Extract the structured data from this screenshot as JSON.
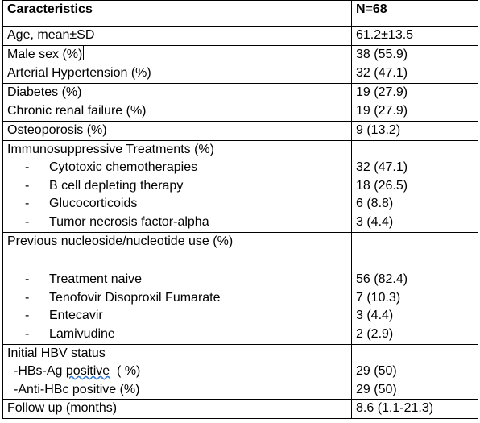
{
  "header": {
    "col1": "Caracteristics",
    "col2": "N=68"
  },
  "simple_rows": [
    {
      "label": "Age, mean±SD",
      "value": "61.2±13.5"
    },
    {
      "label": "Male sex (%)",
      "value": "38 (55.9)"
    },
    {
      "label": "Arterial Hypertension (%)",
      "value": "32 (47.1)"
    },
    {
      "label": "Diabetes (%)",
      "value": "19 (27.9)"
    },
    {
      "label": "Chronic renal failure (%)",
      "value": "19 (27.9)"
    },
    {
      "label": "Osteoporosis (%)",
      "value": "9 (13.2)"
    }
  ],
  "immuno": {
    "title": "Immunosuppressive Treatments (%)",
    "items": [
      {
        "dash": "-",
        "label": "Cytotoxic chemotherapies",
        "value": "32 (47.1)"
      },
      {
        "dash": "-",
        "label": "B cell depleting therapy",
        "value": "18 (26.5)"
      },
      {
        "dash": "-",
        "label": "Glucocorticoids",
        "value": "6 (8.8)"
      },
      {
        "dash": "-",
        "label": "Tumor necrosis factor-alpha",
        "value": "3 (4.4)"
      }
    ]
  },
  "nucleoside": {
    "title": "Previous nucleoside/nucleotide use (%)",
    "items": [
      {
        "dash": "-",
        "label": "Treatment naive",
        "value": "56 (82.4)"
      },
      {
        "dash": "-",
        "label": "Tenofovir Disoproxil Fumarate",
        "value": "7 (10.3)"
      },
      {
        "dash": "-",
        "label": "Entecavir",
        "value": "3 (4.4)"
      },
      {
        "dash": "-",
        "label": "Lamivudine",
        "value": "2 (2.9)"
      }
    ]
  },
  "hbv": {
    "title": "Initial HBV status",
    "items": [
      {
        "label_pre": "-HBs-Ag ",
        "label_wavy": "positive",
        "label_post": "  ( %)",
        "value": "29 (50)"
      },
      {
        "label": "-Anti-HBc positive (%)",
        "value": "29 (50)"
      }
    ]
  },
  "follow_up": {
    "label": "Follow up (months)",
    "value": "8.6 (1.1-21.3)"
  }
}
